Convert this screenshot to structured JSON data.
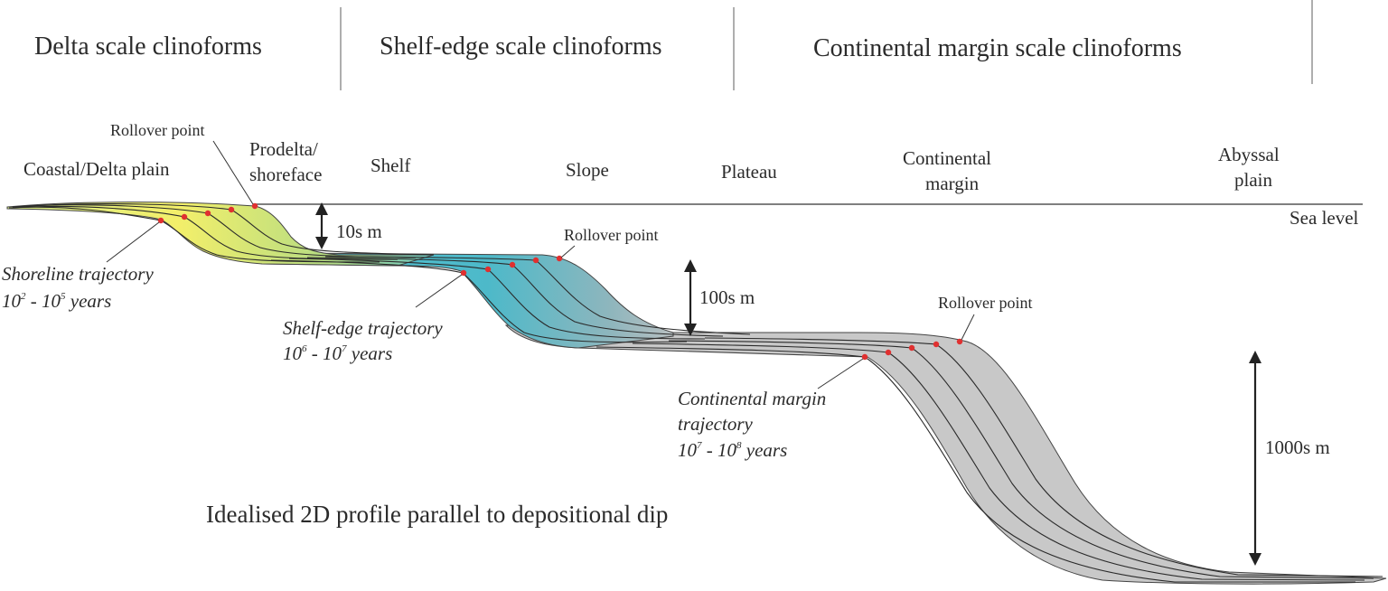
{
  "headers": {
    "delta": "Delta scale clinoforms",
    "shelf_edge": "Shelf-edge scale clinoforms",
    "continental": "Continental margin scale clinoforms"
  },
  "zones": {
    "coastal": "Coastal/Delta plain",
    "prodelta_1": "Prodelta/",
    "prodelta_2": "shoreface",
    "shelf": "Shelf",
    "slope": "Slope",
    "plateau": "Plateau",
    "continental_1": "Continental",
    "continental_2": "margin",
    "abyssal_1": "Abyssal",
    "abyssal_2": "plain"
  },
  "sea_level": "Sea level",
  "rollover": {
    "delta": "Rollover point",
    "shelf": "Rollover point",
    "margin": "Rollover point"
  },
  "scales": {
    "delta": "10s m",
    "shelf": "100s m",
    "margin": "1000s m"
  },
  "trajectories": {
    "shoreline": {
      "name": "Shoreline trajectory",
      "base": "10",
      "exp1": "2",
      "mid": " - 10",
      "exp2": "5",
      "tail": " years"
    },
    "shelf_edge": {
      "name": "Shelf-edge trajectory",
      "base": "10",
      "exp1": "6",
      "mid": " - 10",
      "exp2": "7",
      "tail": " years"
    },
    "continental": {
      "name_1": "Continental margin",
      "name_2": "trajectory",
      "base": "10",
      "exp1": "7",
      "mid": " - 10",
      "exp2": "8",
      "tail": " years"
    }
  },
  "caption": "Idealised 2D profile parallel to depositional dip",
  "colors": {
    "delta_yellow": "#f3ef6a",
    "delta_green": "#b6dc83",
    "shelf_cyan": "#4fc0cf",
    "slope_teal": "#7fb3bd",
    "margin_grey": "#c8c8c8",
    "rollover_red": "#e03030"
  }
}
